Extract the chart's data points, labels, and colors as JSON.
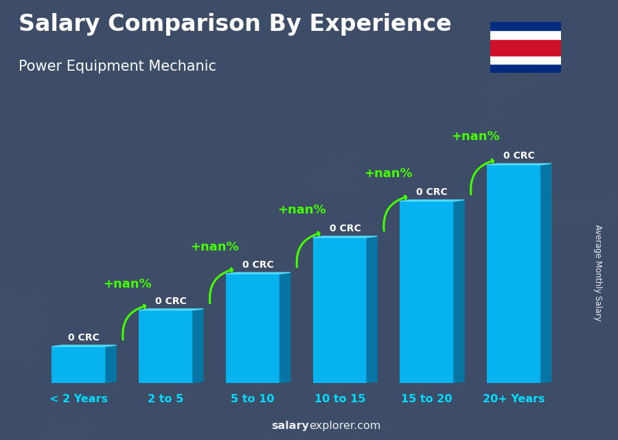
{
  "title": "Salary Comparison By Experience",
  "subtitle": "Power Equipment Mechanic",
  "categories": [
    "< 2 Years",
    "2 to 5",
    "5 to 10",
    "10 to 15",
    "15 to 20",
    "20+ Years"
  ],
  "values": [
    1,
    2,
    3,
    4,
    5,
    6
  ],
  "bar_label": "0 CRC",
  "change_label": "+nan%",
  "bar_color_face": "#00BFFF",
  "bar_color_side": "#007AAA",
  "bar_color_top": "#55DDFF",
  "bar_width": 0.62,
  "depth": 0.12,
  "ylabel": "Average Monthly Salary",
  "watermark_bold": "salary",
  "watermark_normal": "explorer.com",
  "bg_color": "#3a4a5a",
  "title_color": "#ffffff",
  "subtitle_color": "#ffffff",
  "label_color": "#ffffff",
  "arrow_color": "#44ff00",
  "change_color": "#44ff00",
  "flag_blue": "#002B7F",
  "flag_white": "#FFFFFF",
  "flag_red": "#CE1126"
}
